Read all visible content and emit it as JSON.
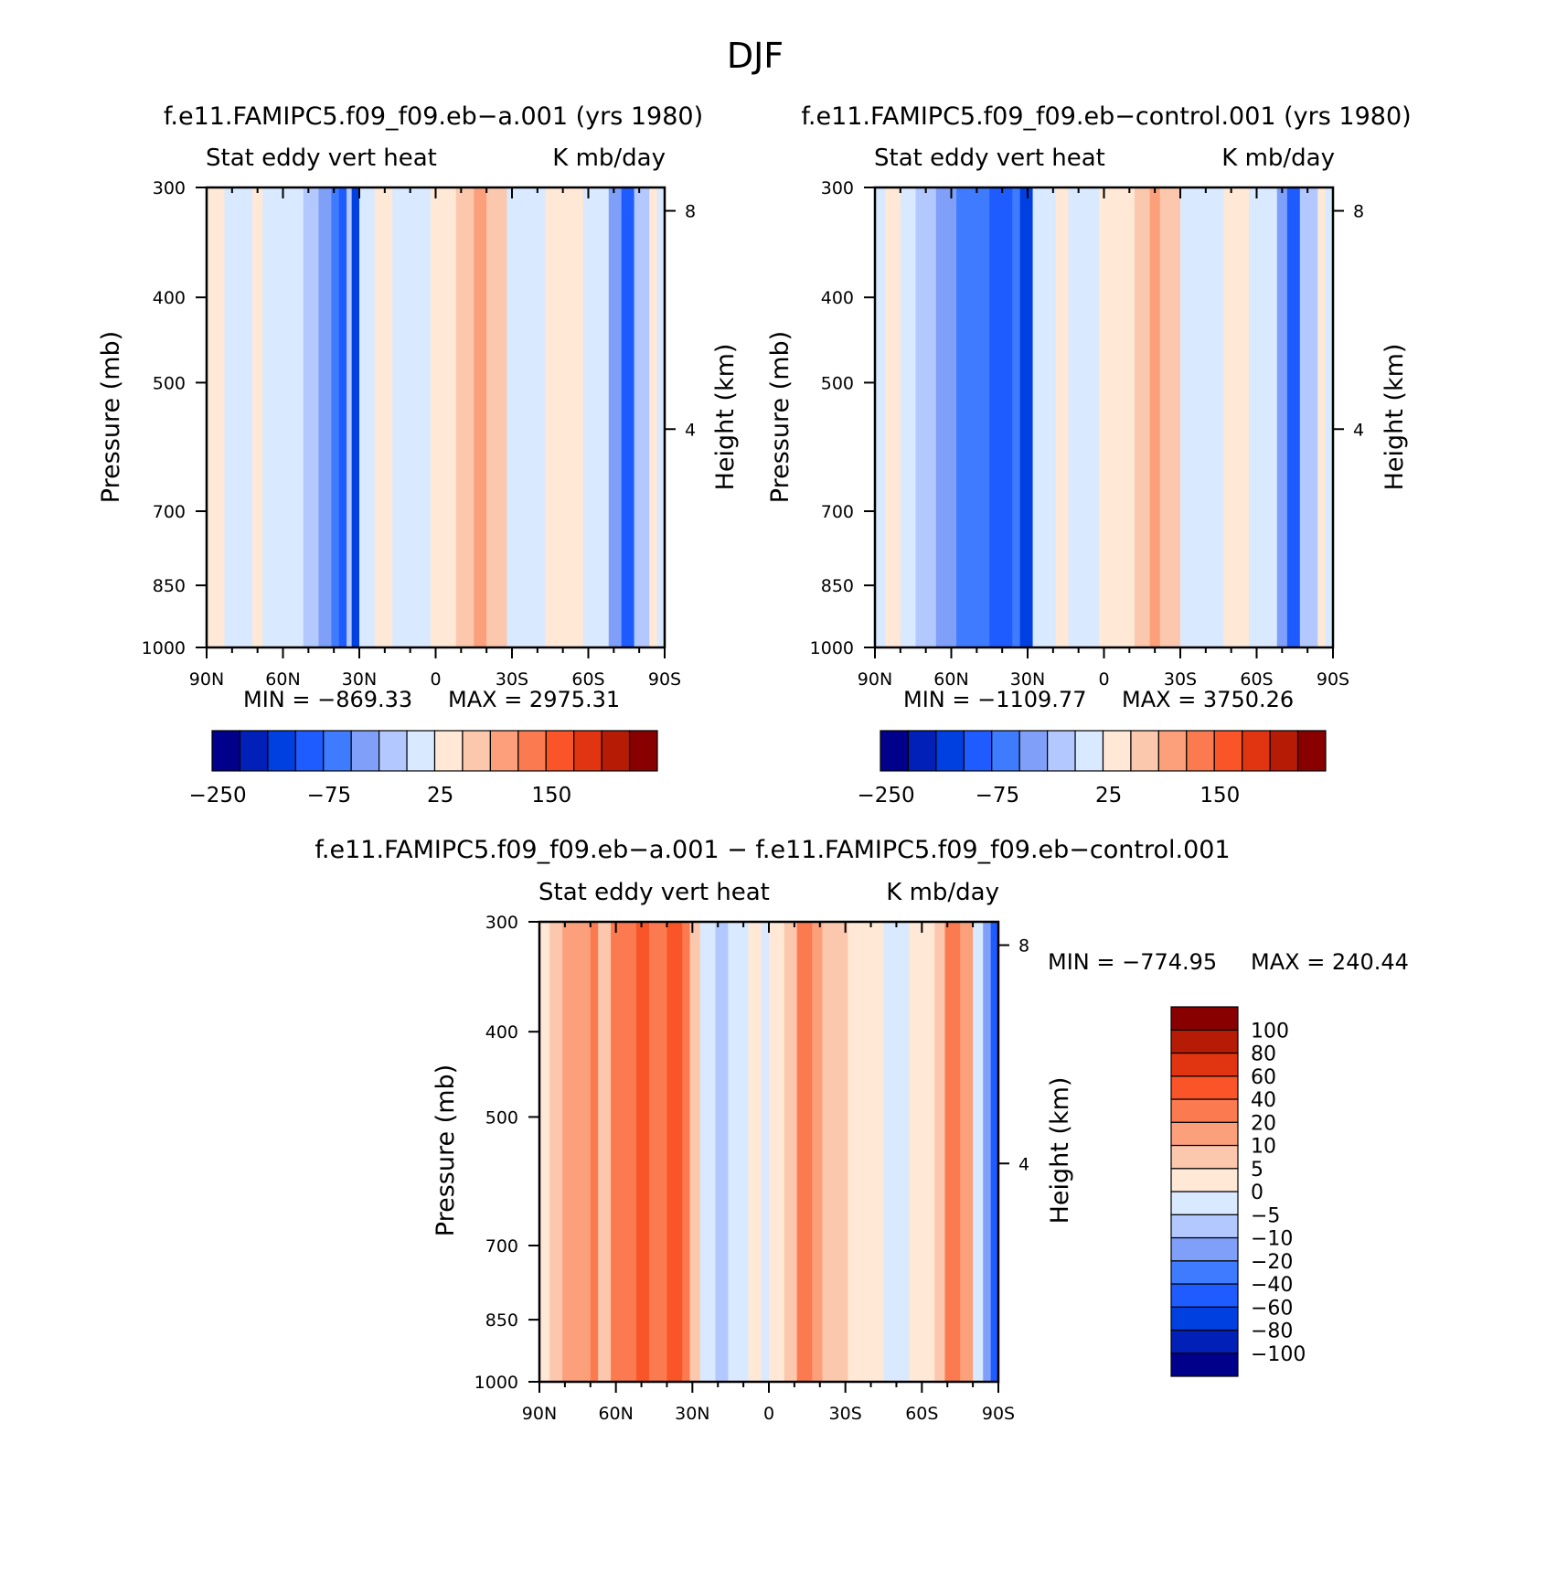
{
  "figure_title": "DJF",
  "palette": [
    "#00008b",
    "#0020b8",
    "#0040e0",
    "#1f5cff",
    "#3f7bff",
    "#7f9ff9",
    "#b3c8ff",
    "#d9e9ff",
    "#ffe8d6",
    "#fcc8ad",
    "#fca07c",
    "#fc7a4f",
    "#fa5528",
    "#e03510",
    "#b51b05",
    "#880000"
  ],
  "chart_data": [
    {
      "type": "heatmap",
      "title": "f.e11.FAMIPC5.f09_f09.eb−a.001 (yrs 1980)",
      "subtitle_left": "Stat eddy vert heat",
      "subtitle_right": "K mb/day",
      "xlabel": "",
      "ylabel": "Pressure (mb)",
      "y2label": "Height (km)",
      "x_ticks": [
        "90N",
        "60N",
        "30N",
        "0",
        "30S",
        "60S",
        "90S"
      ],
      "y_ticks": [
        "300",
        "400",
        "500",
        "700",
        "850",
        "1000"
      ],
      "y2_ticks": [
        "8",
        "4"
      ],
      "y_scale": "log",
      "ylim": [
        1000,
        300
      ],
      "min_text": "MIN = −869.33",
      "max_text": "MAX = 2975.31",
      "colorbar_labels": [
        "−250",
        "−75",
        "25",
        "150"
      ],
      "field_bands": [
        {
          "lat": 90,
          "c": 8
        },
        {
          "lat": 83,
          "c": 7
        },
        {
          "lat": 72,
          "c": 8
        },
        {
          "lat": 68,
          "c": 7
        },
        {
          "lat": 60,
          "c": 7
        },
        {
          "lat": 52,
          "c": 6
        },
        {
          "lat": 46,
          "c": 5
        },
        {
          "lat": 41,
          "c": 4
        },
        {
          "lat": 38,
          "c": 3
        },
        {
          "lat": 35,
          "c": 6
        },
        {
          "lat": 33,
          "c": 2
        },
        {
          "lat": 30,
          "c": 7
        },
        {
          "lat": 24,
          "c": 8
        },
        {
          "lat": 17,
          "c": 7
        },
        {
          "lat": 2,
          "c": 8
        },
        {
          "lat": -8,
          "c": 9
        },
        {
          "lat": -15,
          "c": 10
        },
        {
          "lat": -20,
          "c": 9
        },
        {
          "lat": -28,
          "c": 7
        },
        {
          "lat": -43,
          "c": 8
        },
        {
          "lat": -58,
          "c": 7
        },
        {
          "lat": -68,
          "c": 5
        },
        {
          "lat": -73,
          "c": 3
        },
        {
          "lat": -78,
          "c": 6
        },
        {
          "lat": -84,
          "c": 8
        },
        {
          "lat": -87,
          "c": 7
        }
      ]
    },
    {
      "type": "heatmap",
      "title": "f.e11.FAMIPC5.f09_f09.eb−control.001 (yrs 1980)",
      "subtitle_left": "Stat eddy vert heat",
      "subtitle_right": "K mb/day",
      "xlabel": "",
      "ylabel": "Pressure (mb)",
      "y2label": "Height (km)",
      "x_ticks": [
        "90N",
        "60N",
        "30N",
        "0",
        "30S",
        "60S",
        "90S"
      ],
      "y_ticks": [
        "300",
        "400",
        "500",
        "700",
        "850",
        "1000"
      ],
      "y2_ticks": [
        "8",
        "4"
      ],
      "y_scale": "log",
      "ylim": [
        1000,
        300
      ],
      "min_text": "MIN = −1109.77",
      "max_text": "MAX = 3750.26",
      "colorbar_labels": [
        "−250",
        "−75",
        "25",
        "150"
      ],
      "field_bands": [
        {
          "lat": 90,
          "c": 7
        },
        {
          "lat": 86,
          "c": 8
        },
        {
          "lat": 80,
          "c": 7
        },
        {
          "lat": 74,
          "c": 6
        },
        {
          "lat": 66,
          "c": 5
        },
        {
          "lat": 58,
          "c": 4
        },
        {
          "lat": 45,
          "c": 3
        },
        {
          "lat": 36,
          "c": 4
        },
        {
          "lat": 33,
          "c": 2
        },
        {
          "lat": 28,
          "c": 7
        },
        {
          "lat": 19,
          "c": 8
        },
        {
          "lat": 14,
          "c": 7
        },
        {
          "lat": 2,
          "c": 8
        },
        {
          "lat": -12,
          "c": 9
        },
        {
          "lat": -18,
          "c": 10
        },
        {
          "lat": -22,
          "c": 9
        },
        {
          "lat": -30,
          "c": 7
        },
        {
          "lat": -47,
          "c": 8
        },
        {
          "lat": -57,
          "c": 7
        },
        {
          "lat": -68,
          "c": 5
        },
        {
          "lat": -72,
          "c": 3
        },
        {
          "lat": -77,
          "c": 6
        },
        {
          "lat": -84,
          "c": 8
        },
        {
          "lat": -87,
          "c": 7
        }
      ]
    },
    {
      "type": "heatmap",
      "title": "f.e11.FAMIPC5.f09_f09.eb−a.001 − f.e11.FAMIPC5.f09_f09.eb−control.001",
      "subtitle_left": "Stat eddy vert heat",
      "subtitle_right": "K mb/day",
      "xlabel": "",
      "ylabel": "Pressure (mb)",
      "y2label": "Height (km)",
      "x_ticks": [
        "90N",
        "60N",
        "30N",
        "0",
        "30S",
        "60S",
        "90S"
      ],
      "y_ticks": [
        "300",
        "400",
        "500",
        "700",
        "850",
        "1000"
      ],
      "y2_ticks": [
        "8",
        "4"
      ],
      "y_scale": "log",
      "ylim": [
        1000,
        300
      ],
      "min_text": "MIN = −774.95",
      "max_text": "MAX = 240.44",
      "colorbar_labels": [
        "100",
        "80",
        "60",
        "40",
        "20",
        "10",
        "5",
        "0",
        "−5",
        "−10",
        "−20",
        "−40",
        "−60",
        "−80",
        "−100"
      ],
      "field_bands": [
        {
          "lat": 90,
          "c": 8
        },
        {
          "lat": 86,
          "c": 9
        },
        {
          "lat": 81,
          "c": 10
        },
        {
          "lat": 70,
          "c": 11
        },
        {
          "lat": 67,
          "c": 9
        },
        {
          "lat": 62,
          "c": 11
        },
        {
          "lat": 52,
          "c": 12
        },
        {
          "lat": 47,
          "c": 11
        },
        {
          "lat": 40,
          "c": 12
        },
        {
          "lat": 34,
          "c": 11
        },
        {
          "lat": 31,
          "c": 9
        },
        {
          "lat": 27,
          "c": 7
        },
        {
          "lat": 21,
          "c": 6
        },
        {
          "lat": 16,
          "c": 7
        },
        {
          "lat": 8,
          "c": 8
        },
        {
          "lat": 3,
          "c": 7
        },
        {
          "lat": 0,
          "c": 8
        },
        {
          "lat": -6,
          "c": 9
        },
        {
          "lat": -11,
          "c": 11
        },
        {
          "lat": -17,
          "c": 10
        },
        {
          "lat": -21,
          "c": 9
        },
        {
          "lat": -31,
          "c": 8
        },
        {
          "lat": -45,
          "c": 7
        },
        {
          "lat": -55,
          "c": 8
        },
        {
          "lat": -65,
          "c": 9
        },
        {
          "lat": -69,
          "c": 11
        },
        {
          "lat": -75,
          "c": 10
        },
        {
          "lat": -80,
          "c": 7
        },
        {
          "lat": -84,
          "c": 5
        },
        {
          "lat": -87,
          "c": 3
        }
      ]
    }
  ]
}
